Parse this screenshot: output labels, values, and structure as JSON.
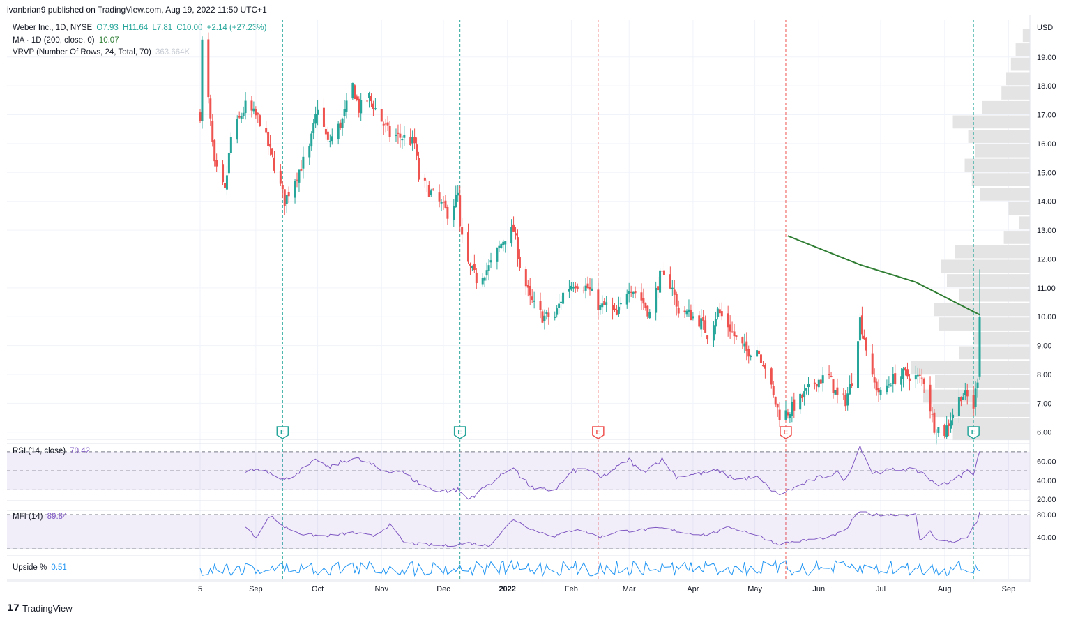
{
  "header": {
    "published": "ivanbrian9 published on TradingView.com, Aug 19, 2022 11:50 UTC+1"
  },
  "legend": {
    "symbol": "Weber Inc., 1D, NYSE",
    "open": "O7.93",
    "high": "H11.64",
    "low": "L7.81",
    "close": "C10.00",
    "change": "+2.14 (+27.23%)",
    "ma_label": "MA · 1D (200, close, 0)",
    "ma_value": "10.07",
    "vrvp_label": "VRVP (Number Of Rows, 24, Total, 70)",
    "vrvp_value": "363.664K"
  },
  "panes": {
    "rsi": {
      "label": "RSI (14, close)",
      "value": "70.42"
    },
    "mfi": {
      "label": "MFI (14)",
      "value": "89.84"
    },
    "upside": {
      "label": "Upside %",
      "value": "0.51"
    }
  },
  "currency": "USD",
  "footer": {
    "brand": "TradingView"
  },
  "colors": {
    "up": "#26a69a",
    "down": "#ef5350",
    "ma": "#2e7d32",
    "osc": "#7e57c2",
    "upside": "#2196f3",
    "vrvp": "#e4e4e4"
  },
  "chart_data": {
    "type": "candlestick",
    "title": "Weber Inc., 1D, NYSE",
    "x_ticks": [
      "5",
      "Sep",
      "Oct",
      "Nov",
      "Dec",
      "2022",
      "Feb",
      "Mar",
      "Apr",
      "May",
      "Jun",
      "Jul",
      "Aug",
      "Sep"
    ],
    "y_ticks": [
      "19.00",
      "18.00",
      "17.00",
      "16.00",
      "15.00",
      "14.00",
      "13.00",
      "12.00",
      "11.00",
      "10.00",
      "9.00",
      "8.00",
      "7.00",
      "6.00"
    ],
    "ylim": [
      5.8,
      20.3
    ],
    "earnings_markers": [
      {
        "label": "E",
        "date": "2021-09-14",
        "color": "#26a69a"
      },
      {
        "label": "E",
        "date": "2021-12-09",
        "color": "#26a69a"
      },
      {
        "label": "E",
        "date": "2022-02-14",
        "color": "#ef5350"
      },
      {
        "label": "E",
        "date": "2022-05-16",
        "color": "#ef5350"
      },
      {
        "label": "E",
        "date": "2022-08-15",
        "color": "#26a69a"
      }
    ],
    "price_anchors": [
      [
        "2021-08-05",
        17.0
      ],
      [
        "2021-08-06",
        19.5
      ],
      [
        "2021-08-09",
        17.5
      ],
      [
        "2021-08-12",
        15.2
      ],
      [
        "2021-08-17",
        14.3
      ],
      [
        "2021-08-20",
        16.2
      ],
      [
        "2021-08-27",
        17.3
      ],
      [
        "2021-09-03",
        16.8
      ],
      [
        "2021-09-09",
        15.5
      ],
      [
        "2021-09-15",
        14.0
      ],
      [
        "2021-09-20",
        14.8
      ],
      [
        "2021-09-27",
        15.8
      ],
      [
        "2021-10-01",
        17.3
      ],
      [
        "2021-10-06",
        16.0
      ],
      [
        "2021-10-13",
        16.8
      ],
      [
        "2021-10-18",
        18.0
      ],
      [
        "2021-10-21",
        17.2
      ],
      [
        "2021-10-26",
        17.6
      ],
      [
        "2021-11-01",
        16.8
      ],
      [
        "2021-11-05",
        16.3
      ],
      [
        "2021-11-12",
        16.2
      ],
      [
        "2021-11-17",
        16.0
      ],
      [
        "2021-11-19",
        14.8
      ],
      [
        "2021-11-26",
        14.2
      ],
      [
        "2021-12-03",
        13.6
      ],
      [
        "2021-12-08",
        14.2
      ],
      [
        "2021-12-09",
        13.0
      ],
      [
        "2021-12-13",
        11.8
      ],
      [
        "2021-12-17",
        11.3
      ],
      [
        "2021-12-23",
        11.7
      ],
      [
        "2021-12-31",
        12.8
      ],
      [
        "2022-01-04",
        13.0
      ],
      [
        "2022-01-07",
        11.8
      ],
      [
        "2022-01-12",
        10.6
      ],
      [
        "2022-01-18",
        10.0
      ],
      [
        "2022-01-24",
        10.0
      ],
      [
        "2022-01-28",
        10.8
      ],
      [
        "2022-02-02",
        11.2
      ],
      [
        "2022-02-09",
        11.0
      ],
      [
        "2022-02-15",
        10.3
      ],
      [
        "2022-02-18",
        10.4
      ],
      [
        "2022-02-23",
        10.0
      ],
      [
        "2022-03-01",
        11.1
      ],
      [
        "2022-03-07",
        10.6
      ],
      [
        "2022-03-11",
        10.1
      ],
      [
        "2022-03-16",
        11.4
      ],
      [
        "2022-03-22",
        11.1
      ],
      [
        "2022-03-24",
        10.3
      ],
      [
        "2022-03-30",
        10.1
      ],
      [
        "2022-04-05",
        9.8
      ],
      [
        "2022-04-08",
        9.4
      ],
      [
        "2022-04-13",
        10.2
      ],
      [
        "2022-04-19",
        9.6
      ],
      [
        "2022-04-22",
        9.2
      ],
      [
        "2022-04-27",
        8.8
      ],
      [
        "2022-05-02",
        8.9
      ],
      [
        "2022-05-06",
        8.3
      ],
      [
        "2022-05-10",
        7.2
      ],
      [
        "2022-05-13",
        6.6
      ],
      [
        "2022-05-17",
        6.7
      ],
      [
        "2022-05-24",
        7.2
      ],
      [
        "2022-05-31",
        7.8
      ],
      [
        "2022-06-06",
        7.9
      ],
      [
        "2022-06-10",
        7.2
      ],
      [
        "2022-06-14",
        7.1
      ],
      [
        "2022-06-17",
        7.8
      ],
      [
        "2022-06-21",
        9.9
      ],
      [
        "2022-06-23",
        9.3
      ],
      [
        "2022-06-27",
        7.8
      ],
      [
        "2022-07-01",
        7.3
      ],
      [
        "2022-07-06",
        7.8
      ],
      [
        "2022-07-12",
        8.0
      ],
      [
        "2022-07-18",
        7.9
      ],
      [
        "2022-07-22",
        7.8
      ],
      [
        "2022-07-27",
        6.2
      ],
      [
        "2022-08-01",
        6.0
      ],
      [
        "2022-08-04",
        6.5
      ],
      [
        "2022-08-09",
        7.3
      ],
      [
        "2022-08-12",
        7.2
      ],
      [
        "2022-08-15",
        6.9
      ],
      [
        "2022-08-17",
        7.9
      ],
      [
        "2022-08-18",
        10.0
      ]
    ],
    "last_candle": {
      "open": 7.93,
      "high": 11.64,
      "low": 7.81,
      "close": 10.0
    },
    "ma200": [
      [
        "2022-05-17",
        12.8
      ],
      [
        "2022-06-21",
        11.8
      ],
      [
        "2022-07-18",
        11.2
      ],
      [
        "2022-08-18",
        10.07
      ]
    ],
    "vrvp_rows": [
      [
        19.75,
        0.6
      ],
      [
        19.25,
        1.2
      ],
      [
        18.75,
        1.6
      ],
      [
        18.25,
        2.0
      ],
      [
        17.75,
        2.4
      ],
      [
        17.25,
        4.0
      ],
      [
        16.75,
        6.5
      ],
      [
        16.25,
        5.2
      ],
      [
        15.75,
        4.6
      ],
      [
        15.25,
        5.5
      ],
      [
        14.75,
        4.9
      ],
      [
        14.25,
        4.2
      ],
      [
        13.75,
        1.8
      ],
      [
        13.25,
        0.9
      ],
      [
        12.75,
        2.2
      ],
      [
        12.25,
        6.3
      ],
      [
        11.75,
        7.5
      ],
      [
        11.25,
        7.0
      ],
      [
        10.75,
        6.0
      ],
      [
        10.25,
        8.1
      ],
      [
        9.75,
        7.7
      ],
      [
        9.25,
        4.8
      ],
      [
        8.75,
        6.0
      ],
      [
        8.25,
        10.0
      ]
    ],
    "rsi": {
      "name": "RSI (14, close)",
      "last": 70.42,
      "levels": [
        70,
        50,
        30
      ],
      "anchors": [
        [
          "2021-08-27",
          50
        ],
        [
          "2021-09-03",
          52
        ],
        [
          "2021-09-10",
          47
        ],
        [
          "2021-09-15",
          40
        ],
        [
          "2021-09-24",
          52
        ],
        [
          "2021-10-01",
          62
        ],
        [
          "2021-10-06",
          53
        ],
        [
          "2021-10-18",
          64
        ],
        [
          "2021-10-26",
          58
        ],
        [
          "2021-11-01",
          50
        ],
        [
          "2021-11-10",
          50
        ],
        [
          "2021-11-19",
          37
        ],
        [
          "2021-11-26",
          30
        ],
        [
          "2021-12-03",
          29
        ],
        [
          "2021-12-08",
          30
        ],
        [
          "2021-12-13",
          20
        ],
        [
          "2021-12-17",
          26
        ],
        [
          "2022-01-04",
          55
        ],
        [
          "2022-01-07",
          44
        ],
        [
          "2022-01-14",
          30
        ],
        [
          "2022-01-24",
          30
        ],
        [
          "2022-02-02",
          50
        ],
        [
          "2022-02-09",
          52
        ],
        [
          "2022-02-15",
          42
        ],
        [
          "2022-03-01",
          62
        ],
        [
          "2022-03-07",
          48
        ],
        [
          "2022-03-17",
          62
        ],
        [
          "2022-03-24",
          44
        ],
        [
          "2022-04-05",
          47
        ],
        [
          "2022-04-13",
          50
        ],
        [
          "2022-04-22",
          41
        ],
        [
          "2022-05-02",
          43
        ],
        [
          "2022-05-12",
          25
        ],
        [
          "2022-05-17",
          29
        ],
        [
          "2022-05-31",
          42
        ],
        [
          "2022-06-10",
          48
        ],
        [
          "2022-06-14",
          40
        ],
        [
          "2022-06-21",
          76
        ],
        [
          "2022-06-27",
          48
        ],
        [
          "2022-07-12",
          52
        ],
        [
          "2022-07-22",
          48
        ],
        [
          "2022-07-27",
          36
        ],
        [
          "2022-08-04",
          38
        ],
        [
          "2022-08-12",
          50
        ],
        [
          "2022-08-15",
          48
        ],
        [
          "2022-08-17",
          62
        ],
        [
          "2022-08-18",
          70.42
        ]
      ]
    },
    "mfi": {
      "name": "MFI (14)",
      "last": 89.84,
      "levels": [
        80,
        20
      ],
      "anchors": [
        [
          "2021-08-27",
          58
        ],
        [
          "2021-09-01",
          40
        ],
        [
          "2021-09-08",
          78
        ],
        [
          "2021-09-15",
          58
        ],
        [
          "2021-09-24",
          45
        ],
        [
          "2021-10-05",
          42
        ],
        [
          "2021-10-18",
          48
        ],
        [
          "2021-10-28",
          42
        ],
        [
          "2021-11-05",
          62
        ],
        [
          "2021-11-12",
          30
        ],
        [
          "2021-11-26",
          26
        ],
        [
          "2021-12-03",
          25
        ],
        [
          "2021-12-13",
          30
        ],
        [
          "2021-12-23",
          25
        ],
        [
          "2022-01-04",
          72
        ],
        [
          "2022-01-14",
          52
        ],
        [
          "2022-01-24",
          42
        ],
        [
          "2022-02-04",
          55
        ],
        [
          "2022-02-15",
          40
        ],
        [
          "2022-02-23",
          50
        ],
        [
          "2022-03-04",
          52
        ],
        [
          "2022-03-17",
          56
        ],
        [
          "2022-03-28",
          48
        ],
        [
          "2022-04-08",
          44
        ],
        [
          "2022-04-19",
          58
        ],
        [
          "2022-05-02",
          44
        ],
        [
          "2022-05-12",
          28
        ],
        [
          "2022-05-24",
          34
        ],
        [
          "2022-06-06",
          40
        ],
        [
          "2022-06-14",
          52
        ],
        [
          "2022-06-21",
          90
        ],
        [
          "2022-06-27",
          80
        ],
        [
          "2022-07-18",
          80
        ],
        [
          "2022-07-20",
          34
        ],
        [
          "2022-07-25",
          50
        ],
        [
          "2022-07-29",
          34
        ],
        [
          "2022-08-05",
          32
        ],
        [
          "2022-08-12",
          40
        ],
        [
          "2022-08-17",
          70
        ],
        [
          "2022-08-18",
          89.84
        ]
      ]
    },
    "upside": {
      "name": "Upside %",
      "last": 0.51
    }
  }
}
